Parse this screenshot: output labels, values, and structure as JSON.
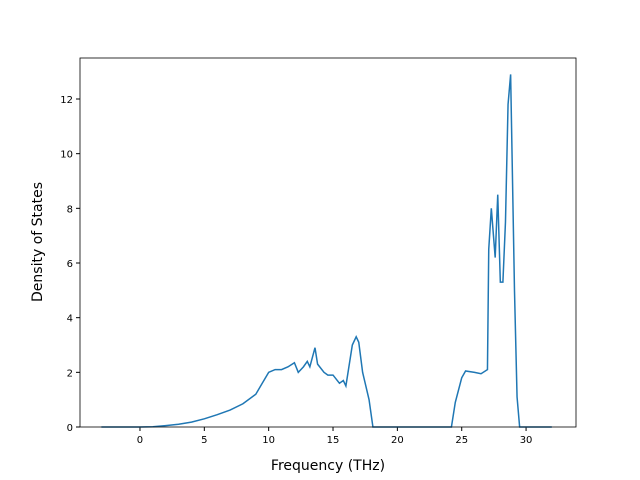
{
  "chart_data": {
    "type": "line",
    "x_label": "Frequency (THz)",
    "y_label": "Density of States",
    "x": [
      -3,
      0,
      1,
      2,
      3,
      4,
      5,
      6,
      7,
      8,
      9,
      9.5,
      10,
      10.5,
      11,
      11.5,
      12,
      12.3,
      12.7,
      13,
      13.2,
      13.6,
      13.8,
      14.3,
      14.6,
      15,
      15.5,
      15.8,
      16,
      16.2,
      16.5,
      16.8,
      17,
      17.3,
      17.8,
      18.1,
      24.2,
      24.5,
      25,
      25.3,
      26,
      26.5,
      27,
      27.1,
      27.3,
      27.6,
      27.8,
      28.0,
      28.2,
      28.4,
      28.6,
      28.8,
      29.1,
      29.3,
      29.5,
      32
    ],
    "series": [
      {
        "color": "#1f77b4",
        "values": [
          0,
          0,
          0.01,
          0.05,
          0.1,
          0.18,
          0.3,
          0.45,
          0.62,
          0.85,
          1.2,
          1.6,
          2.0,
          2.1,
          2.1,
          2.2,
          2.35,
          2.0,
          2.2,
          2.4,
          2.2,
          2.9,
          2.3,
          2.0,
          1.9,
          1.9,
          1.6,
          1.7,
          1.5,
          2.1,
          3.0,
          3.3,
          3.1,
          2.0,
          1.0,
          0,
          0,
          0.9,
          1.8,
          2.05,
          2.0,
          1.95,
          2.1,
          6.5,
          8.0,
          6.2,
          8.5,
          5.3,
          5.3,
          7.5,
          11.8,
          12.9,
          5.0,
          1.1,
          0,
          0
        ]
      }
    ],
    "xlim": [
      -4.66,
      33.88
    ],
    "ylim": [
      0,
      13.5
    ],
    "xticks": [
      0,
      5,
      10,
      15,
      20,
      25,
      30
    ],
    "yticks": [
      0,
      2,
      4,
      6,
      8,
      10,
      12
    ]
  }
}
